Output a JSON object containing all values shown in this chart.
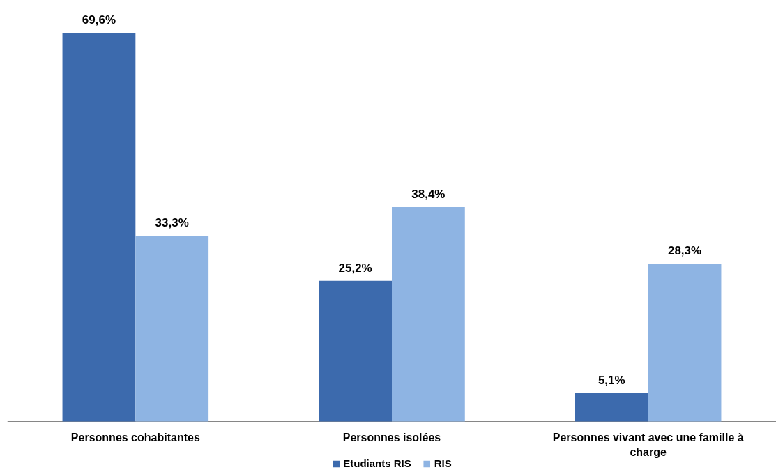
{
  "chart_data": {
    "type": "bar",
    "categories": [
      "Personnes cohabitantes",
      "Personnes isolées",
      "Personnes vivant avec une famille à charge"
    ],
    "series": [
      {
        "name": "Etudiants RIS",
        "color": "#3c6aad",
        "values": [
          69.6,
          25.2,
          5.1
        ],
        "value_labels": [
          "69,6%",
          "25,2%",
          "5,1%"
        ]
      },
      {
        "name": "RIS",
        "color": "#8eb4e3",
        "values": [
          33.3,
          38.4,
          28.3
        ],
        "value_labels": [
          "33,3%",
          "38,4%",
          "28,3%"
        ]
      }
    ],
    "tick_labels": "x",
    "legend": "bottom"
  }
}
